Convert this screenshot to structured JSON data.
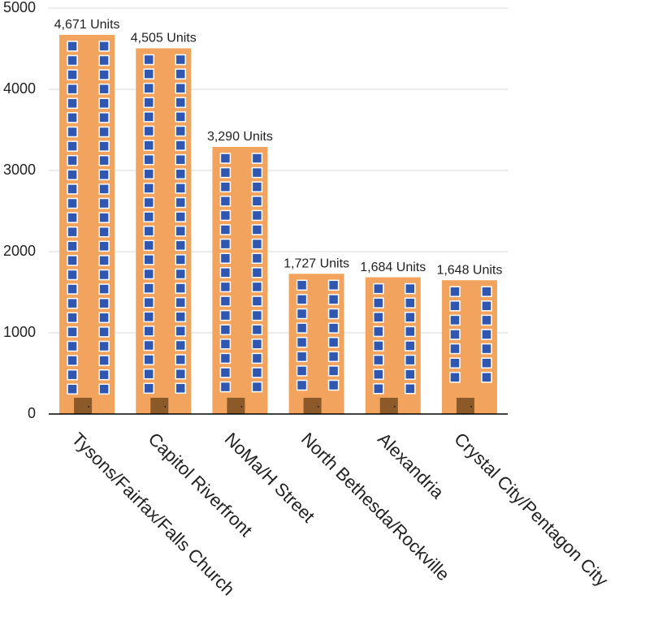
{
  "chart_data": {
    "type": "bar",
    "categories": [
      "Tysons/Fairfax/Falls Church",
      "Capitol Riverfront",
      "NoMa/H Street",
      "North Bethesda/Rockville",
      "Alexandria",
      "Crystal City/Pentagon City"
    ],
    "values": [
      4671,
      4505,
      3290,
      1727,
      1684,
      1648
    ],
    "value_labels": [
      "4,671 Units",
      "4,505 Units",
      "3,290 Units",
      "1,727 Units",
      "1,684 Units",
      "1,648 Units"
    ],
    "color": "#f2a35e",
    "ylim": [
      0,
      5000
    ],
    "yticks": [
      0,
      1000,
      2000,
      3000,
      4000,
      5000
    ],
    "grid": true
  }
}
